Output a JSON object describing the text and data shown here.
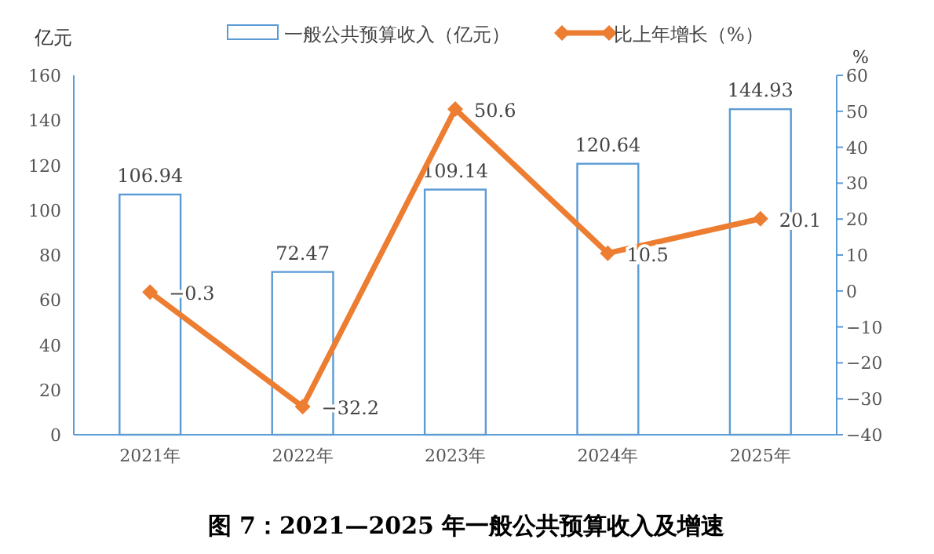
{
  "chart_data": {
    "type": "bar",
    "title": "图 7：2021—2025 年一般公共预算收入及增速",
    "ylabel": "亿元",
    "y2label": "%",
    "categories": [
      "2021年",
      "2022年",
      "2023年",
      "2024年",
      "2025年"
    ],
    "series": [
      {
        "name": "一般公共预算收入（亿元）",
        "color": "#5b9bd5",
        "values": [
          106.94,
          72.47,
          109.14,
          120.64,
          144.93
        ],
        "value_labels": [
          "106.94",
          "72.47",
          "109.14",
          "120.64",
          "144.93"
        ]
      },
      {
        "name": "比上年增长（%）",
        "type": "line",
        "axis": "y2",
        "color": "#ed7d31",
        "marker": "diamond",
        "values": [
          -0.3,
          -32.2,
          50.6,
          10.5,
          20.1
        ],
        "value_labels": [
          "−0.3",
          "−32.2",
          "50.6",
          "10.5",
          "20.1"
        ]
      }
    ],
    "ylim": [
      0,
      160
    ],
    "yticks": [
      0,
      20,
      40,
      60,
      80,
      100,
      120,
      140,
      160
    ],
    "y2lim": [
      -40,
      60
    ],
    "y2ticks": [
      {
        "value": -40,
        "label": "−40"
      },
      {
        "value": -30,
        "label": "−30"
      },
      {
        "value": -20,
        "label": "−20"
      },
      {
        "value": -10,
        "label": "−10"
      },
      0,
      10,
      20,
      30,
      40,
      50,
      60
    ],
    "grid": false,
    "legend": "top"
  }
}
